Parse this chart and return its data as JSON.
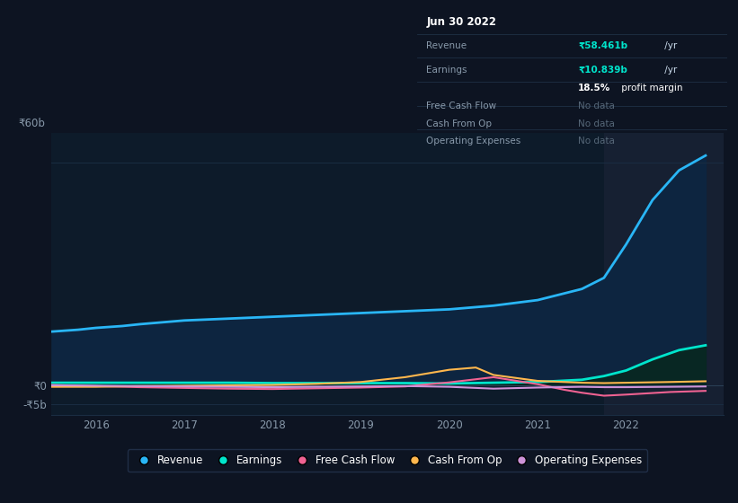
{
  "bg_color": "#0d1422",
  "plot_bg_color": "#0d1b2a",
  "highlight_bg_color": "#162032",
  "grid_color": "#1a2d42",
  "yticks": [
    "₹60b",
    "₹0",
    "-₹5b"
  ],
  "ytick_vals": [
    60,
    0,
    -5
  ],
  "ylim": [
    -8,
    68
  ],
  "xlim_left": 2015.5,
  "xlim_right": 2023.1,
  "xticks": [
    2016,
    2017,
    2018,
    2019,
    2020,
    2021,
    2022
  ],
  "highlight_x_start": 2021.75,
  "highlight_x_end": 2023.1,
  "revenue": {
    "color": "#29b6f6",
    "label": "Revenue",
    "x": [
      2015.5,
      2015.8,
      2016.0,
      2016.3,
      2016.5,
      2017.0,
      2017.5,
      2018.0,
      2018.5,
      2019.0,
      2019.5,
      2020.0,
      2020.5,
      2021.0,
      2021.5,
      2021.75,
      2022.0,
      2022.3,
      2022.6,
      2022.9
    ],
    "y": [
      14.5,
      15.0,
      15.5,
      16.0,
      16.5,
      17.5,
      18.0,
      18.5,
      19.0,
      19.5,
      20.0,
      20.5,
      21.5,
      23.0,
      26.0,
      29.0,
      38.0,
      50.0,
      58.0,
      62.0
    ]
  },
  "earnings": {
    "color": "#00e5cc",
    "label": "Earnings",
    "x": [
      2015.5,
      2016.0,
      2016.5,
      2017.0,
      2017.5,
      2018.0,
      2018.5,
      2019.0,
      2019.5,
      2020.0,
      2020.5,
      2021.0,
      2021.5,
      2021.75,
      2022.0,
      2022.3,
      2022.6,
      2022.9
    ],
    "y": [
      0.7,
      0.7,
      0.7,
      0.7,
      0.7,
      0.6,
      0.6,
      0.6,
      0.6,
      0.5,
      0.7,
      0.9,
      1.5,
      2.5,
      4.0,
      7.0,
      9.5,
      10.8
    ]
  },
  "free_cash_flow": {
    "color": "#f06292",
    "label": "Free Cash Flow",
    "x": [
      2015.5,
      2016.0,
      2016.5,
      2017.0,
      2017.5,
      2018.0,
      2018.5,
      2019.0,
      2019.5,
      2020.0,
      2020.5,
      2021.0,
      2021.3,
      2021.5,
      2021.75,
      2022.0,
      2022.5,
      2022.9
    ],
    "y": [
      0.1,
      -0.2,
      -0.5,
      -0.7,
      -0.9,
      -1.0,
      -0.8,
      -0.6,
      -0.3,
      0.8,
      2.2,
      0.3,
      -1.2,
      -2.0,
      -2.8,
      -2.5,
      -1.8,
      -1.5
    ]
  },
  "cash_from_op": {
    "color": "#ffb74d",
    "label": "Cash From Op",
    "x": [
      2015.5,
      2016.0,
      2016.5,
      2017.0,
      2017.5,
      2018.0,
      2018.5,
      2019.0,
      2019.5,
      2020.0,
      2020.3,
      2020.5,
      2021.0,
      2021.5,
      2021.75,
      2022.0,
      2022.5,
      2022.9
    ],
    "y": [
      -0.4,
      -0.4,
      -0.2,
      -0.1,
      0.0,
      0.1,
      0.4,
      0.9,
      2.2,
      4.2,
      4.8,
      2.8,
      1.2,
      0.7,
      0.6,
      0.7,
      0.9,
      1.1
    ]
  },
  "operating_expenses": {
    "color": "#ce93d8",
    "label": "Operating Expenses",
    "x": [
      2015.5,
      2016.0,
      2016.5,
      2017.0,
      2017.5,
      2018.0,
      2018.5,
      2019.0,
      2019.5,
      2020.0,
      2020.5,
      2021.0,
      2021.5,
      2021.75,
      2022.0,
      2022.5,
      2022.9
    ],
    "y": [
      0.0,
      -0.1,
      -0.2,
      -0.3,
      -0.4,
      -0.5,
      -0.4,
      -0.3,
      -0.2,
      -0.4,
      -0.9,
      -0.6,
      -0.4,
      -0.5,
      -0.5,
      -0.4,
      -0.3
    ]
  },
  "tooltip": {
    "date": "Jun 30 2022",
    "revenue_label": "Revenue",
    "revenue_val": "₹58.461b",
    "revenue_suffix": " /yr",
    "earnings_label": "Earnings",
    "earnings_val": "₹10.839b",
    "earnings_suffix": " /yr",
    "profit_pct": "18.5%",
    "profit_text": " profit margin",
    "fcf_label": "Free Cash Flow",
    "cfo_label": "Cash From Op",
    "opex_label": "Operating Expenses",
    "no_data": "No data"
  }
}
